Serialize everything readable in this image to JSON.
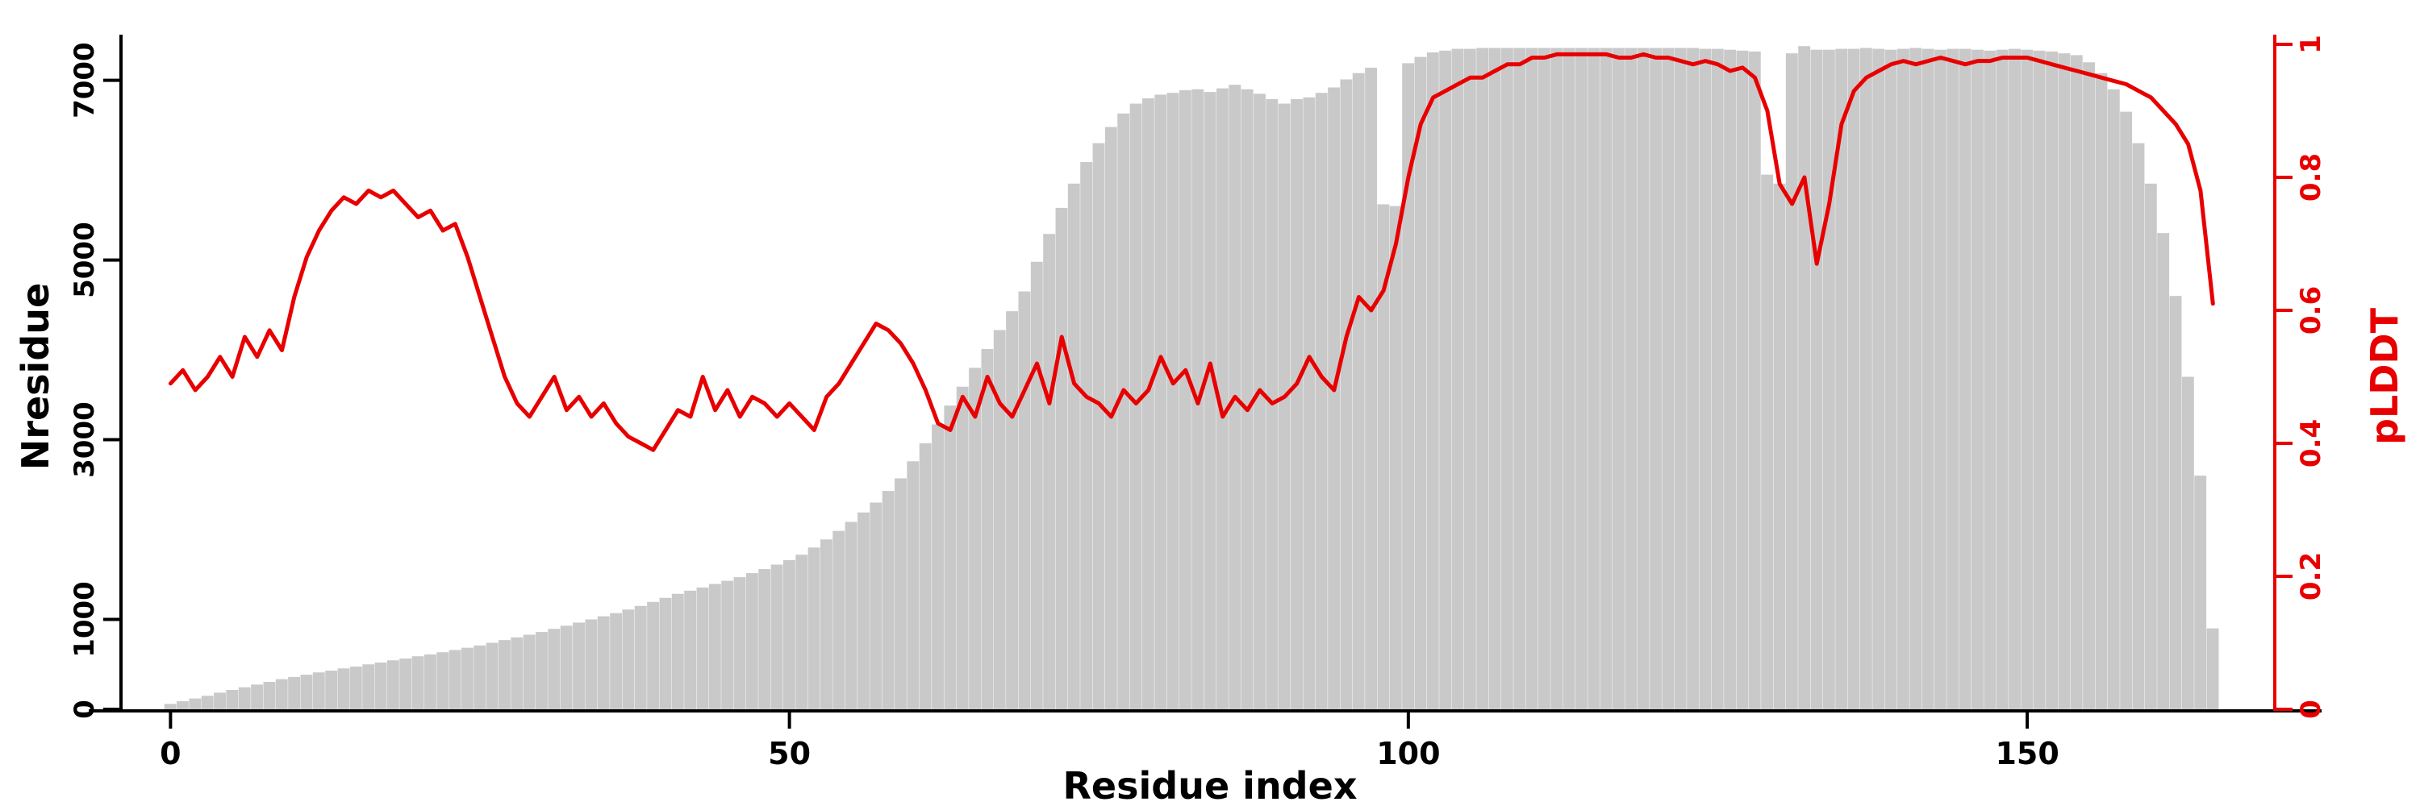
{
  "chart_data": {
    "type": "bar",
    "title": "",
    "xlabel": "Residue index",
    "ylabel_left": "Nresidue",
    "ylabel_right": "pLDDT",
    "x_lim": [
      -4,
      170
    ],
    "y_left_lim": [
      0,
      7400
    ],
    "y_right_lim": [
      0,
      1
    ],
    "x_ticks": [
      0,
      50,
      100,
      150
    ],
    "y_left_ticks": [
      0,
      1000,
      3000,
      5000,
      7000
    ],
    "y_right_ticks": [
      0,
      0.2,
      0.4,
      0.6,
      0.8,
      1
    ],
    "grid": false,
    "legend": "none",
    "colors": {
      "bar": "#c9c9c9",
      "line": "#e80000",
      "axis_left": "#000000",
      "axis_right": "#e80000"
    },
    "x": [
      0,
      1,
      2,
      3,
      4,
      5,
      6,
      7,
      8,
      9,
      10,
      11,
      12,
      13,
      14,
      15,
      16,
      17,
      18,
      19,
      20,
      21,
      22,
      23,
      24,
      25,
      26,
      27,
      28,
      29,
      30,
      31,
      32,
      33,
      34,
      35,
      36,
      37,
      38,
      39,
      40,
      41,
      42,
      43,
      44,
      45,
      46,
      47,
      48,
      49,
      50,
      51,
      52,
      53,
      54,
      55,
      56,
      57,
      58,
      59,
      60,
      61,
      62,
      63,
      64,
      65,
      66,
      67,
      68,
      69,
      70,
      71,
      72,
      73,
      74,
      75,
      76,
      77,
      78,
      79,
      80,
      81,
      82,
      83,
      84,
      85,
      86,
      87,
      88,
      89,
      90,
      91,
      92,
      93,
      94,
      95,
      96,
      97,
      98,
      99,
      100,
      101,
      102,
      103,
      104,
      105,
      106,
      107,
      108,
      109,
      110,
      111,
      112,
      113,
      114,
      115,
      116,
      117,
      118,
      119,
      120,
      121,
      122,
      123,
      124,
      125,
      126,
      127,
      128,
      129,
      130,
      131,
      132,
      133,
      134,
      135,
      136,
      137,
      138,
      139,
      140,
      141,
      142,
      143,
      144,
      145,
      146,
      147,
      148,
      149,
      150,
      151,
      152,
      153,
      154,
      155,
      156,
      157,
      158,
      159,
      160,
      161,
      162,
      163,
      164,
      165
    ],
    "series": [
      {
        "name": "Nresidue",
        "kind": "bar",
        "axis": "left",
        "color": "#c9c9c9",
        "values": [
          60,
          90,
          120,
          150,
          185,
          215,
          245,
          275,
          305,
          335,
          360,
          385,
          410,
          430,
          455,
          475,
          500,
          520,
          545,
          565,
          590,
          610,
          635,
          660,
          685,
          710,
          740,
          770,
          800,
          830,
          860,
          895,
          930,
          965,
          1000,
          1035,
          1070,
          1110,
          1150,
          1195,
          1240,
          1285,
          1320,
          1355,
          1395,
          1430,
          1470,
          1515,
          1560,
          1610,
          1660,
          1720,
          1800,
          1890,
          1985,
          2085,
          2190,
          2300,
          2430,
          2570,
          2760,
          2960,
          3170,
          3380,
          3590,
          3800,
          4010,
          4220,
          4430,
          4650,
          4980,
          5290,
          5580,
          5850,
          6090,
          6300,
          6480,
          6630,
          6740,
          6800,
          6840,
          6860,
          6890,
          6900,
          6870,
          6910,
          6950,
          6900,
          6850,
          6790,
          6740,
          6790,
          6810,
          6860,
          6920,
          7010,
          7080,
          7140,
          5620,
          5600,
          7190,
          7260,
          7310,
          7330,
          7350,
          7350,
          7360,
          7360,
          7360,
          7360,
          7360,
          7360,
          7360,
          7360,
          7360,
          7360,
          7360,
          7360,
          7360,
          7360,
          7360,
          7360,
          7360,
          7360,
          7350,
          7350,
          7340,
          7330,
          7320,
          5950,
          5850,
          7300,
          7380,
          7340,
          7340,
          7350,
          7350,
          7360,
          7350,
          7340,
          7350,
          7360,
          7350,
          7340,
          7350,
          7350,
          7340,
          7330,
          7340,
          7350,
          7340,
          7330,
          7320,
          7300,
          7280,
          7200,
          7080,
          6900,
          6650,
          6300,
          5850,
          5300,
          4600,
          3700,
          2600,
          900
        ]
      },
      {
        "name": "pLDDT",
        "kind": "line",
        "axis": "right",
        "color": "#e80000",
        "values": [
          0.49,
          0.51,
          0.48,
          0.5,
          0.53,
          0.5,
          0.56,
          0.53,
          0.57,
          0.54,
          0.62,
          0.68,
          0.72,
          0.75,
          0.77,
          0.76,
          0.78,
          0.77,
          0.78,
          0.76,
          0.74,
          0.75,
          0.72,
          0.73,
          0.68,
          0.62,
          0.56,
          0.5,
          0.46,
          0.44,
          0.47,
          0.5,
          0.45,
          0.47,
          0.44,
          0.46,
          0.43,
          0.41,
          0.4,
          0.39,
          0.42,
          0.45,
          0.44,
          0.5,
          0.45,
          0.48,
          0.44,
          0.47,
          0.46,
          0.44,
          0.46,
          0.44,
          0.42,
          0.47,
          0.49,
          0.52,
          0.55,
          0.58,
          0.57,
          0.55,
          0.52,
          0.48,
          0.43,
          0.42,
          0.47,
          0.44,
          0.5,
          0.46,
          0.44,
          0.48,
          0.52,
          0.46,
          0.56,
          0.49,
          0.47,
          0.46,
          0.44,
          0.48,
          0.46,
          0.48,
          0.53,
          0.49,
          0.51,
          0.46,
          0.52,
          0.44,
          0.47,
          0.45,
          0.48,
          0.46,
          0.47,
          0.49,
          0.53,
          0.5,
          0.48,
          0.56,
          0.62,
          0.6,
          0.63,
          0.7,
          0.8,
          0.88,
          0.92,
          0.93,
          0.94,
          0.95,
          0.95,
          0.96,
          0.97,
          0.97,
          0.98,
          0.98,
          0.985,
          0.985,
          0.985,
          0.985,
          0.985,
          0.98,
          0.98,
          0.985,
          0.98,
          0.98,
          0.975,
          0.97,
          0.975,
          0.97,
          0.96,
          0.965,
          0.95,
          0.9,
          0.79,
          0.76,
          0.8,
          0.67,
          0.76,
          0.88,
          0.93,
          0.95,
          0.96,
          0.97,
          0.975,
          0.97,
          0.975,
          0.98,
          0.975,
          0.97,
          0.975,
          0.975,
          0.98,
          0.98,
          0.98,
          0.975,
          0.97,
          0.965,
          0.96,
          0.955,
          0.95,
          0.945,
          0.94,
          0.93,
          0.92,
          0.9,
          0.88,
          0.85,
          0.78,
          0.61
        ]
      }
    ]
  }
}
